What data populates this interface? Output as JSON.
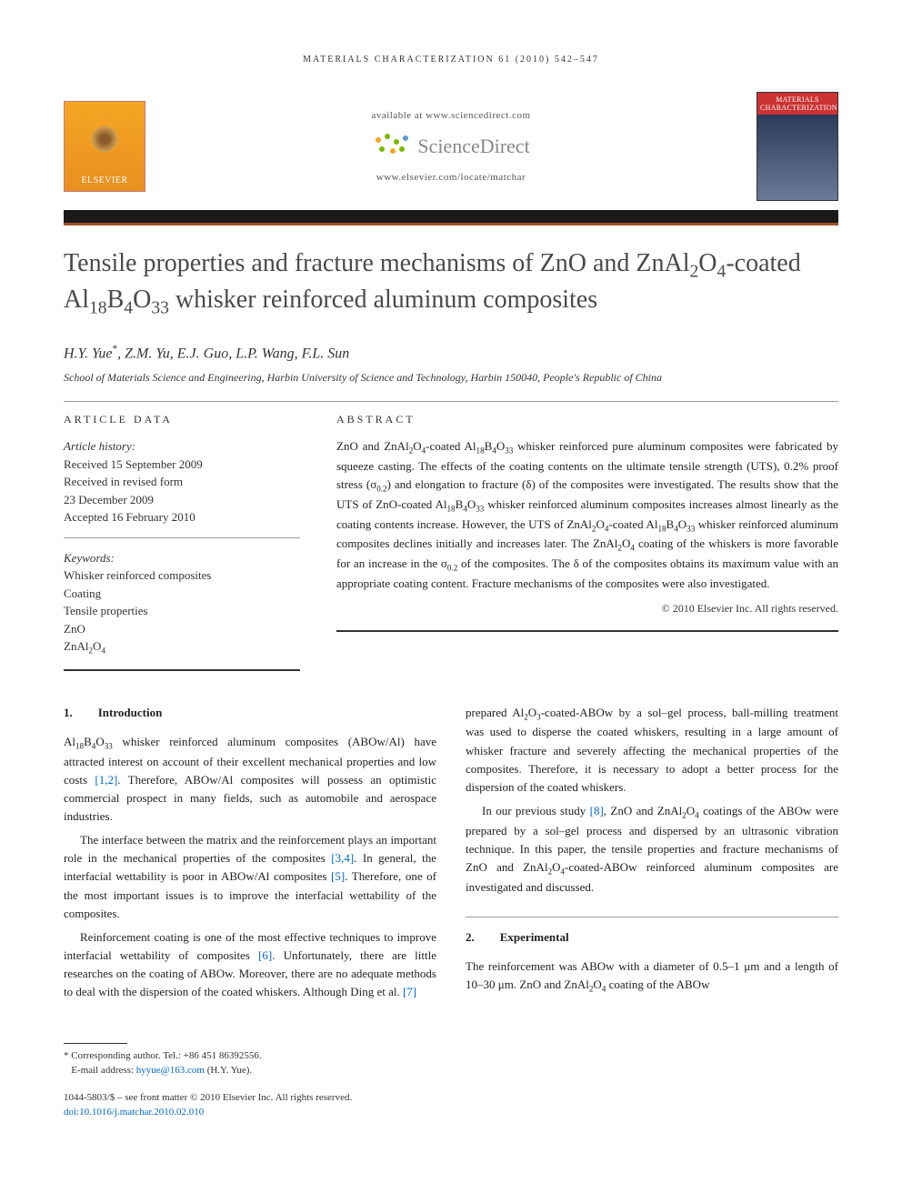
{
  "running_head": "MATERIALS CHARACTERIZATION 61 (2010) 542–547",
  "header": {
    "available_at": "available at www.sciencedirect.com",
    "brand": "ScienceDirect",
    "locate_url": "www.elsevier.com/locate/matchar",
    "elsevier_label": "ELSEVIER",
    "journal_cover_title": "MATERIALS CHARACTERIZATION"
  },
  "article": {
    "title_html": "Tensile properties and fracture mechanisms of ZnO and ZnAl<sub>2</sub>O<sub>4</sub>-coated Al<sub>18</sub>B<sub>4</sub>O<sub>33</sub> whisker reinforced aluminum composites",
    "authors_html": "H.Y. Yue<span class='corr-mark'>*</span>, Z.M. Yu, E.J. Guo, L.P. Wang, F.L. Sun",
    "affiliation": "School of Materials Science and Engineering, Harbin University of Science and Technology, Harbin 150040, People's Republic of China"
  },
  "article_data": {
    "heading": "ARTICLE DATA",
    "history_label": "Article history:",
    "history": [
      "Received 15 September 2009",
      "Received in revised form",
      "23 December 2009",
      "Accepted 16 February 2010"
    ],
    "keywords_label": "Keywords:",
    "keywords": [
      "Whisker reinforced composites",
      "Coating",
      "Tensile properties",
      "ZnO",
      "ZnAl<sub>2</sub>O<sub>4</sub>"
    ]
  },
  "abstract": {
    "heading": "ABSTRACT",
    "text_html": "ZnO and ZnAl<sub>2</sub>O<sub>4</sub>-coated Al<sub>18</sub>B<sub>4</sub>O<sub>33</sub> whisker reinforced pure aluminum composites were fabricated by squeeze casting. The effects of the coating contents on the ultimate tensile strength (UTS), 0.2% proof stress (σ<sub>0.2</sub>) and elongation to fracture (δ) of the composites were investigated. The results show that the UTS of ZnO-coated Al<sub>18</sub>B<sub>4</sub>O<sub>33</sub> whisker reinforced aluminum composites increases almost linearly as the coating contents increase. However, the UTS of ZnAl<sub>2</sub>O<sub>4</sub>-coated Al<sub>18</sub>B<sub>4</sub>O<sub>33</sub> whisker reinforced aluminum composites declines initially and increases later. The ZnAl<sub>2</sub>O<sub>4</sub> coating of the whiskers is more favorable for an increase in the σ<sub>0.2</sub> of the composites. The δ of the composites obtains its maximum value with an appropriate coating content. Fracture mechanisms of the composites were also investigated.",
    "copyright": "© 2010 Elsevier Inc. All rights reserved."
  },
  "sections": {
    "intro": {
      "num": "1.",
      "title": "Introduction",
      "paras": [
        "Al<sub>18</sub>B<sub>4</sub>O<sub>33</sub> whisker reinforced aluminum composites (ABOw/Al) have attracted interest on account of their excellent mechanical properties and low costs <span class='ref-link'>[1,2]</span>. Therefore, ABOw/Al composites will possess an optimistic commercial prospect in many fields, such as automobile and aerospace industries.",
        "The interface between the matrix and the reinforcement plays an important role in the mechanical properties of the composites <span class='ref-link'>[3,4]</span>. In general, the interfacial wettability is poor in ABOw/Al composites <span class='ref-link'>[5]</span>. Therefore, one of the most important issues is to improve the interfacial wettability of the composites.",
        "Reinforcement coating is one of the most effective techniques to improve interfacial wettability of composites <span class='ref-link'>[6]</span>. Unfortunately, there are little researches on the coating of ABOw. Moreover, there are no adequate methods to deal with the dispersion of the coated whiskers. Although Ding et al. <span class='ref-link'>[7]</span>"
      ],
      "col2_lead": "prepared Al<sub>2</sub>O<sub>3</sub>-coated-ABOw by a sol–gel process, ball-milling treatment was used to disperse the coated whiskers, resulting in a large amount of whisker fracture and severely affecting the mechanical properties of the composites. Therefore, it is necessary to adopt a better process for the dispersion of the coated whiskers.",
      "col2_p2": "In our previous study <span class='ref-link'>[8]</span>, ZnO and ZnAl<sub>2</sub>O<sub>4</sub> coatings of the ABOw were prepared by a sol–gel process and dispersed by an ultrasonic vibration technique. In this paper, the tensile properties and fracture mechanisms of ZnO and ZnAl<sub>2</sub>O<sub>4</sub>-coated-ABOw reinforced aluminum composites are investigated and discussed."
    },
    "exp": {
      "num": "2.",
      "title": "Experimental",
      "para": "The reinforcement was ABOw with a diameter of 0.5–1 μm and a length of 10–30 μm. ZnO and ZnAl<sub>2</sub>O<sub>4</sub> coating of the ABOw"
    }
  },
  "footer": {
    "corr_label": "* Corresponding author.",
    "corr_tel": "Tel.: +86 451 86392556.",
    "email_label": "E-mail address:",
    "email": "hyyue@163.com",
    "email_author": "(H.Y. Yue).",
    "issn_line": "1044-5803/$ – see front matter © 2010 Elsevier Inc. All rights reserved.",
    "doi": "doi:10.1016/j.matchar.2010.02.010"
  },
  "colors": {
    "bar_dark": "#1a1a1a",
    "bar_brown": "#a0522d",
    "link": "#0066cc",
    "sd_green": "#7ab800",
    "sd_orange": "#f5a623",
    "sd_blue": "#5b9bd5"
  }
}
